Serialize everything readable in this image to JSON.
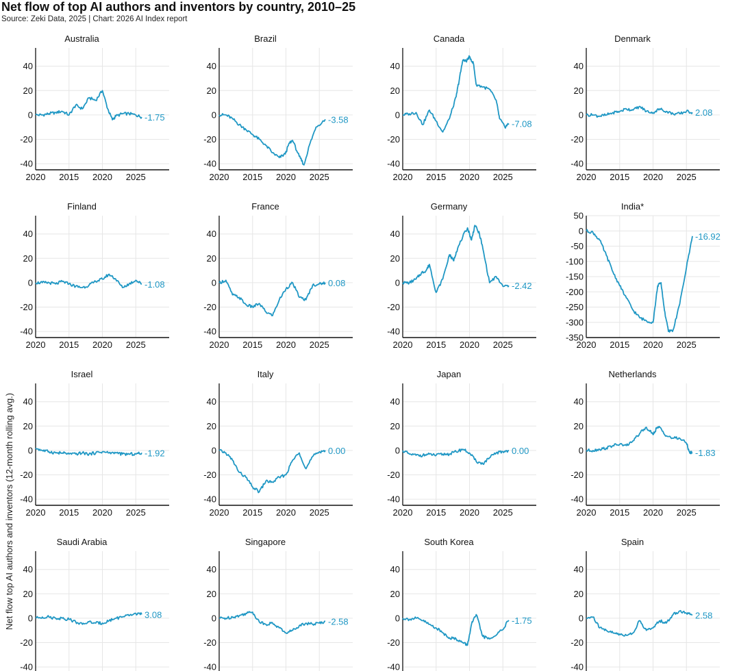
{
  "title": "Net flow of top AI authors and inventors by country, 2010–25",
  "source": "Source: Zeki Data, 2025 | Chart: 2026 AI Index report",
  "y_axis_label": "Net flow top AI authors and inventors (12-month rolling avg.)",
  "colors": {
    "line": "#1f97c4",
    "grid": "#e6e6e6",
    "axis": "#111111"
  },
  "chart_data": [
    {
      "type": "line",
      "title": "Australia",
      "last_label": "-1.75",
      "x_ticks": [
        "2020",
        "2015",
        "2020",
        "2025"
      ],
      "y_ticks": [
        40,
        20,
        0,
        -20,
        -40
      ],
      "ylim": [
        -45,
        55
      ],
      "x": [
        2010,
        2011,
        2012,
        2013,
        2014,
        2015,
        2016,
        2017,
        2018,
        2019,
        2020,
        2020.8,
        2021.5,
        2022,
        2023,
        2024,
        2025,
        2025.9
      ],
      "values": [
        0,
        0,
        1,
        2,
        3,
        0,
        8,
        5,
        14,
        12,
        20,
        5,
        -4,
        -1,
        1,
        1,
        0,
        -1.75
      ]
    },
    {
      "type": "line",
      "title": "Brazil",
      "last_label": "-3.58",
      "x_ticks": [
        "2020",
        "2015",
        "2020",
        "2025"
      ],
      "y_ticks": [
        40,
        20,
        0,
        -20,
        -40
      ],
      "ylim": [
        -45,
        55
      ],
      "x": [
        2010,
        2011,
        2012,
        2013,
        2014,
        2015,
        2016,
        2017,
        2018,
        2019,
        2019.9,
        2020.5,
        2021,
        2022,
        2022.7,
        2023.5,
        2024.5,
        2025.9
      ],
      "values": [
        0,
        0,
        -3,
        -8,
        -12,
        -16,
        -20,
        -25,
        -31,
        -35,
        -32,
        -23,
        -21,
        -34,
        -41,
        -25,
        -10,
        -3.58
      ]
    },
    {
      "type": "line",
      "title": "Canada",
      "last_label": "-7.08",
      "x_ticks": [
        "2020",
        "2015",
        "2020",
        "2025"
      ],
      "y_ticks": [
        40,
        20,
        0,
        -20,
        -40
      ],
      "ylim": [
        -45,
        55
      ],
      "x": [
        2010,
        2011,
        2012,
        2013,
        2014,
        2015,
        2016,
        2017,
        2018,
        2018.5,
        2019,
        2019.5,
        2020,
        2020.6,
        2021,
        2022,
        2023,
        2024,
        2024.5,
        2025.3,
        2025.9
      ],
      "values": [
        0,
        1,
        2,
        -8,
        4,
        -5,
        -14,
        -3,
        15,
        30,
        45,
        44,
        48,
        42,
        25,
        23,
        21,
        12,
        -3,
        -10,
        -7.08
      ]
    },
    {
      "type": "line",
      "title": "Denmark",
      "last_label": "2.08",
      "x_ticks": [
        "2020",
        "2015",
        "2020",
        "2025"
      ],
      "y_ticks": [
        40,
        20,
        0,
        -20,
        -40
      ],
      "ylim": [
        -45,
        55
      ],
      "x": [
        2010,
        2011,
        2012,
        2013,
        2014,
        2015,
        2016,
        2017,
        2018,
        2019,
        2020,
        2021,
        2022,
        2023,
        2024,
        2025,
        2025.9
      ],
      "values": [
        0,
        0,
        -1,
        0,
        2,
        3,
        5,
        4,
        7,
        3,
        2,
        5,
        3,
        1,
        1,
        3,
        2.08
      ]
    },
    {
      "type": "line",
      "title": "Finland",
      "last_label": "-1.08",
      "x_ticks": [
        "2020",
        "2015",
        "2020",
        "2025"
      ],
      "y_ticks": [
        40,
        20,
        0,
        -20,
        -40
      ],
      "ylim": [
        -45,
        55
      ],
      "x": [
        2010,
        2011,
        2012,
        2013,
        2014,
        2015,
        2016,
        2017,
        2018,
        2019,
        2020,
        2021,
        2022,
        2023,
        2024,
        2025,
        2025.9
      ],
      "values": [
        0,
        0,
        0,
        -1,
        1,
        -1,
        -3,
        -4,
        -2,
        1,
        3,
        7,
        3,
        -4,
        -1,
        2,
        -1.08
      ]
    },
    {
      "type": "line",
      "title": "France",
      "last_label": "0.08",
      "x_ticks": [
        "2020",
        "2015",
        "2020",
        "2025"
      ],
      "y_ticks": [
        40,
        20,
        0,
        -20,
        -40
      ],
      "ylim": [
        -45,
        55
      ],
      "x": [
        2010,
        2011,
        2012,
        2013,
        2014,
        2015,
        2016,
        2017,
        2018,
        2019,
        2020,
        2021,
        2022,
        2023,
        2024,
        2025,
        2025.9
      ],
      "values": [
        0,
        2,
        -10,
        -12,
        -18,
        -20,
        -17,
        -24,
        -27,
        -14,
        -5,
        0,
        -12,
        -14,
        -2,
        -1,
        0.08
      ]
    },
    {
      "type": "line",
      "title": "Germany",
      "last_label": "-2.42",
      "x_ticks": [
        "2020",
        "2015",
        "2020",
        "2025"
      ],
      "y_ticks": [
        40,
        20,
        0,
        -20,
        -40
      ],
      "ylim": [
        -45,
        55
      ],
      "x": [
        2010,
        2011,
        2012,
        2012.8,
        2013.5,
        2014,
        2015,
        2016,
        2017,
        2017.6,
        2018,
        2019,
        2019.7,
        2020.3,
        2020.8,
        2021.5,
        2022,
        2023,
        2024,
        2025,
        2025.9
      ],
      "values": [
        0,
        0,
        3,
        8,
        10,
        15,
        -8,
        3,
        23,
        18,
        25,
        38,
        45,
        35,
        47,
        40,
        28,
        0,
        5,
        -3,
        -2.42
      ]
    },
    {
      "type": "line",
      "title": "India*",
      "last_label": "-16.92",
      "x_ticks": [
        "2020",
        "2015",
        "2020",
        "2025"
      ],
      "y_ticks": [
        50,
        0,
        -50,
        -100,
        -150,
        -200,
        -250,
        -300,
        -350
      ],
      "ylim": [
        -350,
        50
      ],
      "x": [
        2010,
        2011,
        2012,
        2013,
        2014,
        2015,
        2016,
        2017,
        2018,
        2019,
        2020,
        2020.7,
        2021.2,
        2021.7,
        2022.3,
        2023,
        2024,
        2025,
        2025.9
      ],
      "values": [
        0,
        -5,
        -30,
        -80,
        -135,
        -180,
        -220,
        -260,
        -285,
        -295,
        -300,
        -180,
        -170,
        -260,
        -330,
        -325,
        -240,
        -120,
        -16.92
      ]
    },
    {
      "type": "line",
      "title": "Israel",
      "last_label": "-1.92",
      "x_ticks": [
        "2020",
        "2015",
        "2020",
        "2025"
      ],
      "y_ticks": [
        40,
        20,
        0,
        -20,
        -40
      ],
      "ylim": [
        -45,
        55
      ],
      "x": [
        2010,
        2011,
        2012,
        2013,
        2014,
        2015,
        2016,
        2017,
        2018,
        2019,
        2020,
        2021,
        2022,
        2023,
        2024,
        2025,
        2025.9
      ],
      "values": [
        2,
        0,
        -1,
        -2,
        -2,
        -3,
        -3,
        -2,
        -3,
        -2,
        -1,
        -2,
        -2,
        -3,
        -3,
        -3,
        -1.92
      ]
    },
    {
      "type": "line",
      "title": "Italy",
      "last_label": "0.00",
      "x_ticks": [
        "2020",
        "2015",
        "2020",
        "2025"
      ],
      "y_ticks": [
        40,
        20,
        0,
        -20,
        -40
      ],
      "ylim": [
        -45,
        55
      ],
      "x": [
        2010,
        2011,
        2012,
        2013,
        2014,
        2015,
        2016,
        2017,
        2018,
        2019,
        2020,
        2021,
        2022,
        2023,
        2024,
        2025,
        2025.9
      ],
      "values": [
        0,
        -2,
        -8,
        -18,
        -22,
        -30,
        -34,
        -25,
        -26,
        -22,
        -20,
        -8,
        -2,
        -15,
        -5,
        -1,
        0
      ]
    },
    {
      "type": "line",
      "title": "Japan",
      "last_label": "0.00",
      "x_ticks": [
        "2020",
        "2015",
        "2020",
        "2025"
      ],
      "y_ticks": [
        40,
        20,
        0,
        -20,
        -40
      ],
      "ylim": [
        -45,
        55
      ],
      "x": [
        2010,
        2011,
        2012,
        2013,
        2014,
        2015,
        2016,
        2017,
        2018,
        2019,
        2020,
        2021,
        2022,
        2023,
        2024,
        2025,
        2025.9
      ],
      "values": [
        0,
        -3,
        -4,
        -4,
        -3,
        -4,
        -3,
        -3,
        -1,
        1,
        -2,
        -9,
        -11,
        -6,
        -2,
        -1,
        0
      ]
    },
    {
      "type": "line",
      "title": "Netherlands",
      "last_label": "-1.83",
      "x_ticks": [
        "2020",
        "2015",
        "2020",
        "2025"
      ],
      "y_ticks": [
        40,
        20,
        0,
        -20,
        -40
      ],
      "ylim": [
        -45,
        55
      ],
      "x": [
        2010,
        2011,
        2012,
        2013,
        2014,
        2015,
        2016,
        2017,
        2018,
        2019,
        2020,
        2020.5,
        2021,
        2022,
        2023,
        2024,
        2025,
        2025.5,
        2025.9
      ],
      "values": [
        0,
        0,
        1,
        2,
        4,
        5,
        4,
        8,
        14,
        19,
        13,
        18,
        19,
        12,
        10,
        10,
        6,
        -2,
        -1.83
      ]
    },
    {
      "type": "line",
      "title": "Saudi Arabia",
      "last_label": "3.08",
      "x_ticks": [
        "2020",
        "2015",
        "2020",
        "2025"
      ],
      "y_ticks": [
        40,
        20,
        0,
        -20,
        -40
      ],
      "ylim": [
        -45,
        55
      ],
      "x": [
        2010,
        2011,
        2012,
        2013,
        2014,
        2015,
        2016,
        2017,
        2018,
        2019,
        2020,
        2021,
        2022,
        2023,
        2024,
        2025,
        2025.9
      ],
      "values": [
        0,
        1,
        1,
        0,
        0,
        -1,
        -3,
        -5,
        -3,
        -4,
        -4,
        -2,
        0,
        1,
        2,
        4,
        3.08
      ]
    },
    {
      "type": "line",
      "title": "Singapore",
      "last_label": "-2.58",
      "x_ticks": [
        "2020",
        "2015",
        "2020",
        "2025"
      ],
      "y_ticks": [
        40,
        20,
        0,
        -20,
        -40
      ],
      "ylim": [
        -45,
        55
      ],
      "x": [
        2010,
        2011,
        2012,
        2013,
        2014,
        2015,
        2016,
        2017,
        2018,
        2019,
        2020,
        2021,
        2022,
        2023,
        2024,
        2025,
        2025.9
      ],
      "values": [
        0,
        0,
        1,
        2,
        4,
        5,
        -3,
        -5,
        -4,
        -8,
        -12,
        -10,
        -6,
        -4,
        -5,
        -4,
        -2.58
      ]
    },
    {
      "type": "line",
      "title": "South Korea",
      "last_label": "-1.75",
      "x_ticks": [
        "2020",
        "2015",
        "2020",
        "2025"
      ],
      "y_ticks": [
        40,
        20,
        0,
        -20,
        -40
      ],
      "ylim": [
        -45,
        55
      ],
      "x": [
        2010,
        2011,
        2012,
        2013,
        2014,
        2015,
        2016,
        2017,
        2018,
        2019,
        2019.7,
        2020.3,
        2021,
        2022,
        2023,
        2024,
        2024.8,
        2025.9
      ],
      "values": [
        0,
        -1,
        0,
        -2,
        -5,
        -8,
        -12,
        -16,
        -17,
        -20,
        -22,
        -5,
        3,
        -15,
        -17,
        -14,
        -10,
        -1.75
      ]
    },
    {
      "type": "line",
      "title": "Spain",
      "last_label": "2.58",
      "x_ticks": [
        "2020",
        "2015",
        "2020",
        "2025"
      ],
      "y_ticks": [
        40,
        20,
        0,
        -20,
        -40
      ],
      "ylim": [
        -45,
        55
      ],
      "x": [
        2010,
        2011,
        2012,
        2013,
        2014,
        2015,
        2016,
        2017,
        2018,
        2019,
        2020,
        2021,
        2022,
        2023,
        2024,
        2025,
        2025.9
      ],
      "values": [
        0,
        1,
        -8,
        -10,
        -12,
        -13,
        -14,
        -12,
        -2,
        -10,
        -8,
        -2,
        -4,
        3,
        6,
        4,
        2.58
      ]
    }
  ]
}
